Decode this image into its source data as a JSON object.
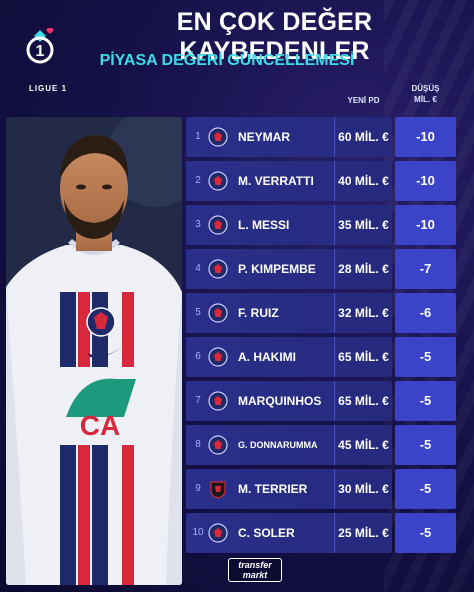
{
  "header": {
    "title": "EN ÇOK DEĞER KAYBEDENLER",
    "subtitle": "PİYASA DEĞERİ GÜNCELLEMESİ",
    "league_logo_text": "LIGUE 1"
  },
  "columns": {
    "new_value": "YENİ PD",
    "drop_line1": "DÜŞÜŞ",
    "drop_line2": "MİL. €"
  },
  "players": [
    {
      "rank": "1",
      "name": "NEYMAR",
      "value": "60 MİL. €",
      "drop": "-10",
      "club_icon": "psg-crest-icon"
    },
    {
      "rank": "2",
      "name": "M. VERRATTI",
      "value": "40 MİL. €",
      "drop": "-10",
      "club_icon": "psg-crest-icon"
    },
    {
      "rank": "3",
      "name": "L. MESSI",
      "value": "35 MİL. €",
      "drop": "-10",
      "club_icon": "psg-crest-icon"
    },
    {
      "rank": "4",
      "name": "P. KIMPEMBE",
      "value": "28 MİL. €",
      "drop": "-7",
      "club_icon": "psg-crest-icon"
    },
    {
      "rank": "5",
      "name": "F. RUIZ",
      "value": "32 MİL. €",
      "drop": "-6",
      "club_icon": "psg-crest-icon"
    },
    {
      "rank": "6",
      "name": "A. HAKIMI",
      "value": "65 MİL. €",
      "drop": "-5",
      "club_icon": "psg-crest-icon"
    },
    {
      "rank": "7",
      "name": "MARQUINHOS",
      "value": "65 MİL. €",
      "drop": "-5",
      "club_icon": "psg-crest-icon"
    },
    {
      "rank": "8",
      "name": "G. DONNARUMMA",
      "value": "45 MİL. €",
      "drop": "-5",
      "club_icon": "psg-crest-icon"
    },
    {
      "rank": "9",
      "name": "M. TERRIER",
      "value": "30 MİL. €",
      "drop": "-5",
      "club_icon": "rennes-crest-icon"
    },
    {
      "rank": "10",
      "name": "C. SOLER",
      "value": "25 MİL. €",
      "drop": "-5",
      "club_icon": "psg-crest-icon"
    }
  ],
  "footer": {
    "brand_line1": "transfer",
    "brand_line2": "markt"
  },
  "colors": {
    "accent": "#3ddbe6",
    "row_bg": "#2a2f8a",
    "drop_bg": "#3b44c9",
    "background": "#16124a"
  }
}
